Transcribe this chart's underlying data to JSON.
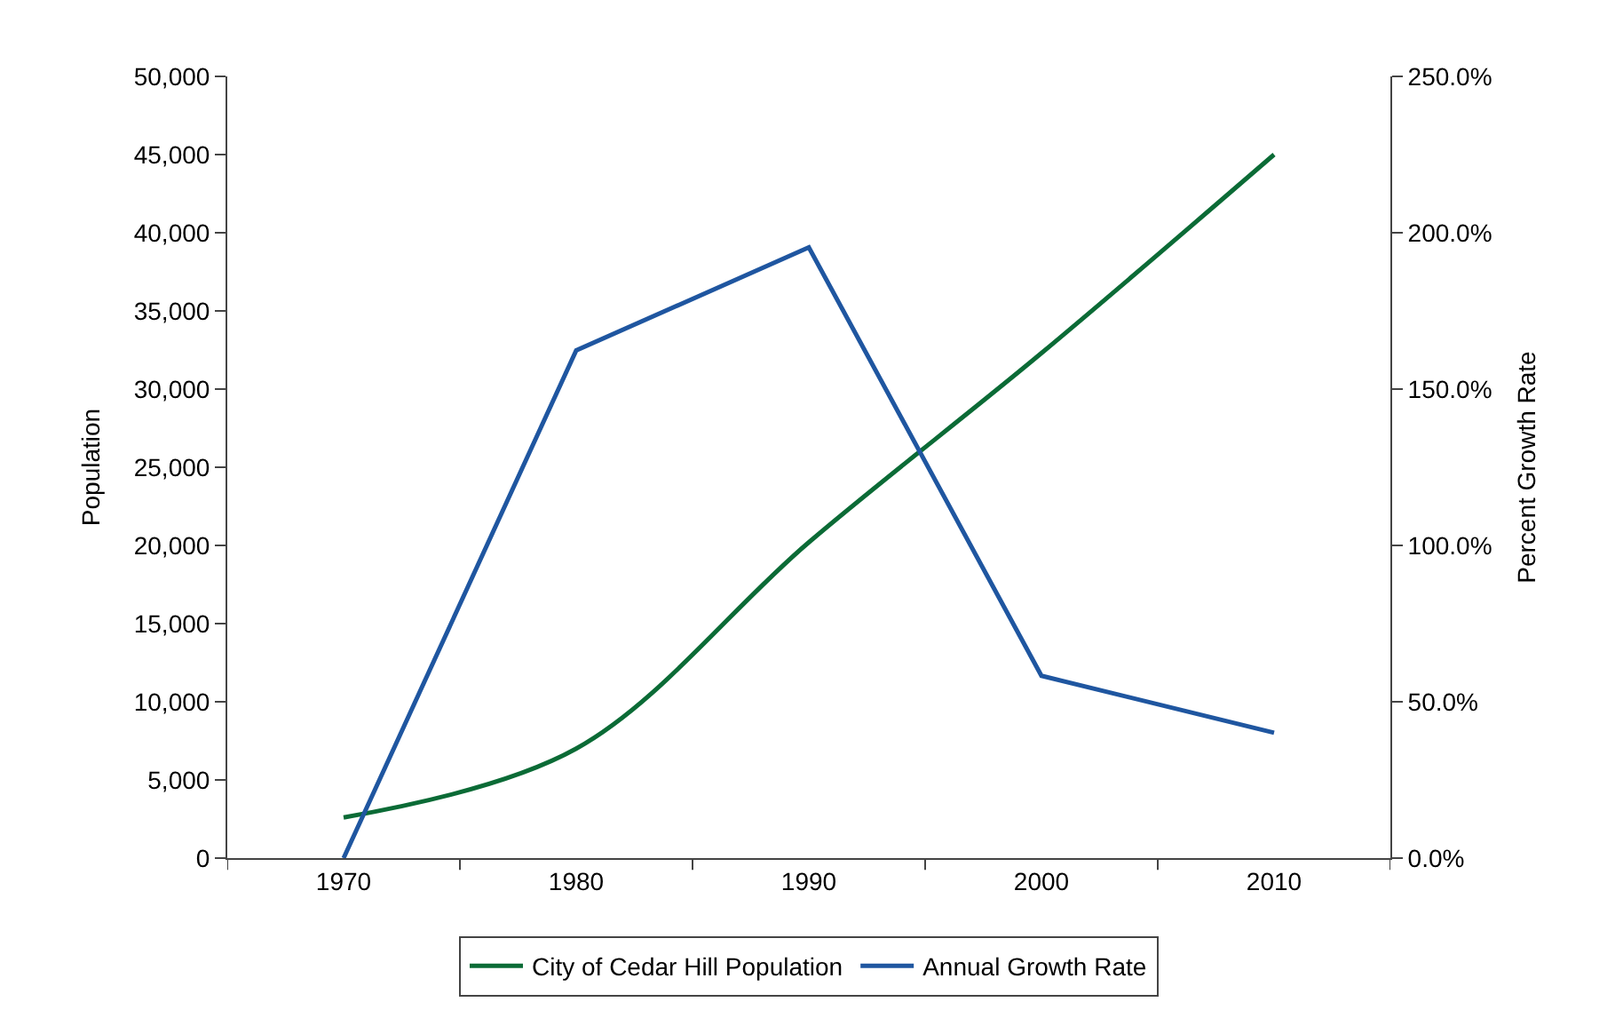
{
  "chart_data": {
    "type": "line",
    "ylabel": "Population",
    "y2label": "Percent Growth Rate",
    "categories": [
      "1970",
      "1980",
      "1990",
      "2000",
      "2010"
    ],
    "series": [
      {
        "name": "City of Cedar Hill Population",
        "color": "#0b6b36",
        "values": [
          2600,
          7000,
          20200,
          32300,
          45000
        ]
      },
      {
        "name": "Annual Growth Rate",
        "color": "#1f56a0",
        "values": [
          0,
          162.4,
          195.3,
          58.3,
          40.1
        ],
        "axis": "y2"
      }
    ],
    "ylim": [
      0,
      50000
    ],
    "yticks": [
      {
        "value": 0,
        "label": "0"
      },
      {
        "value": 5000,
        "label": "5,000"
      },
      {
        "value": 10000,
        "label": "10,000"
      },
      {
        "value": 15000,
        "label": "15,000"
      },
      {
        "value": 20000,
        "label": "20,000"
      },
      {
        "value": 25000,
        "label": "25,000"
      },
      {
        "value": 30000,
        "label": "30,000"
      },
      {
        "value": 35000,
        "label": "35,000"
      },
      {
        "value": 40000,
        "label": "40,000"
      },
      {
        "value": 45000,
        "label": "45,000"
      },
      {
        "value": 50000,
        "label": "50,000"
      }
    ],
    "y2lim": [
      0,
      250
    ],
    "y2ticks": [
      {
        "value": 0,
        "label": "0.0%"
      },
      {
        "value": 50,
        "label": "50.0%"
      },
      {
        "value": 100,
        "label": "100.0%"
      },
      {
        "value": 150,
        "label": "150.0%"
      },
      {
        "value": 200,
        "label": "200.0%"
      },
      {
        "value": 250,
        "label": "250.0%"
      }
    ],
    "legend": "bottom",
    "marker": "none",
    "line_style": "solid"
  }
}
